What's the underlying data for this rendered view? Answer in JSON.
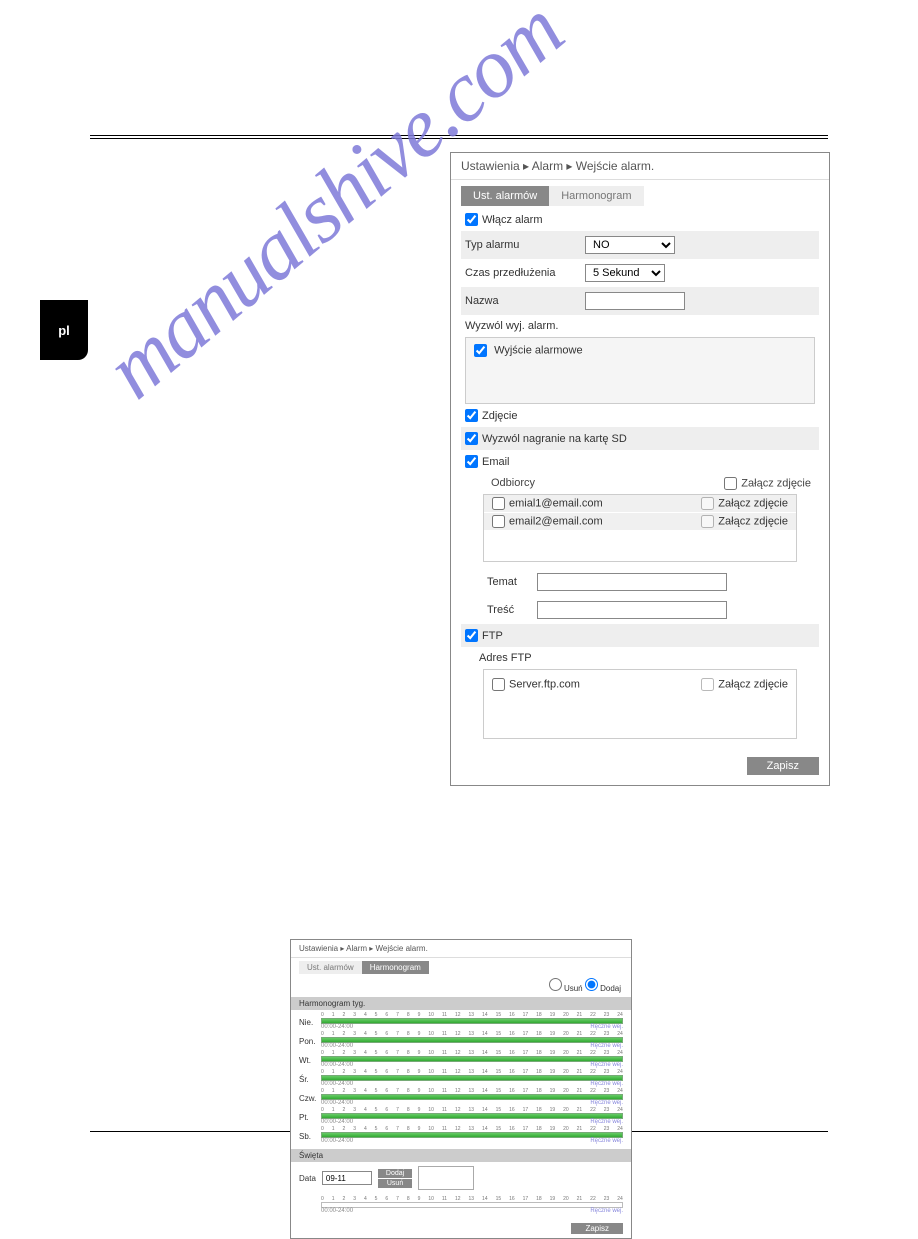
{
  "lang_tab": "pl",
  "watermark": "manualshive.com",
  "shot1": {
    "breadcrumb": "Ustawienia  ▸  Alarm  ▸  Wejście alarm.",
    "tab_active": "Ust. alarmów",
    "tab_inactive": "Harmonogram",
    "enable_alarm": "Włącz alarm",
    "alarm_type_label": "Typ alarmu",
    "alarm_type_value": "NO",
    "extend_label": "Czas przedłużenia",
    "extend_value": "5 Sekund",
    "name_label": "Nazwa",
    "trigger_out": "Wyzwól wyj. alarm.",
    "alarm_output": "Wyjście alarmowe",
    "snapshot": "Zdjęcie",
    "trigger_sd": "Wyzwól nagranie na kartę SD",
    "email": "Email",
    "recipients_label": "Odbiorcy",
    "attach_pic": "Załącz zdjęcie",
    "recipient1": "emial1@email.com",
    "recipient2": "email2@email.com",
    "subject": "Temat",
    "content": "Treść",
    "ftp": "FTP",
    "ftp_addr": "Adres FTP",
    "ftp_server": "Server.ftp.com",
    "save": "Zapisz"
  },
  "shot2": {
    "breadcrumb": "Ustawienia  ▸  Alarm  ▸  Wejście alarm.",
    "tab_inactive": "Ust. alarmów",
    "tab_active": "Harmonogram",
    "delete": "Usuń",
    "add": "Dodaj",
    "weekly_header": "Harmonogram tyg.",
    "days": [
      "Nie.",
      "Pon.",
      "Wt.",
      "Śr.",
      "Czw.",
      "Pt.",
      "Sb."
    ],
    "hours": [
      "0",
      "1",
      "2",
      "3",
      "4",
      "5",
      "6",
      "7",
      "8",
      "9",
      "10",
      "11",
      "12",
      "13",
      "14",
      "15",
      "16",
      "17",
      "18",
      "19",
      "20",
      "21",
      "22",
      "23",
      "24"
    ],
    "range": "00:00-24:00",
    "manual": "Ręczne wej.",
    "holiday_header": "Święta",
    "date_label": "Data",
    "date_value": "09-11",
    "add_btn": "Dodaj",
    "del_btn": "Usuń",
    "save": "Zapisz"
  }
}
